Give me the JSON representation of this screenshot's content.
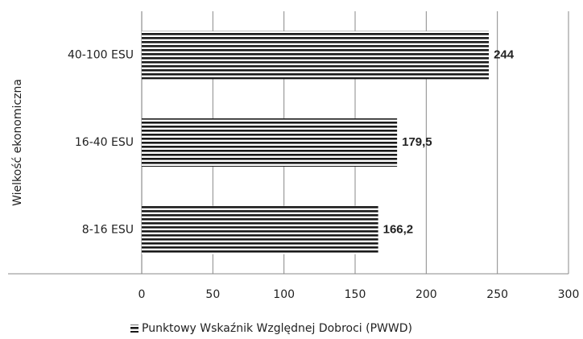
{
  "chart_data": {
    "type": "hbar",
    "categories": [
      "8-16 ESU",
      "16-40 ESU",
      "40-100 ESU"
    ],
    "series": [
      {
        "name": "Punktowy Wskaźnik Względnej Dobroci (PWWD)",
        "color": "#1a1a1a",
        "values": [
          166.2,
          179.5,
          244
        ],
        "value_labels": [
          "166,2",
          "179,5",
          "244"
        ]
      }
    ],
    "y_label": "Wielkość ekonomiczna",
    "xlim": [
      0,
      300
    ],
    "xticks": [
      0,
      50,
      100,
      150,
      200,
      250,
      300
    ],
    "grid": true,
    "legend": "bottom"
  }
}
